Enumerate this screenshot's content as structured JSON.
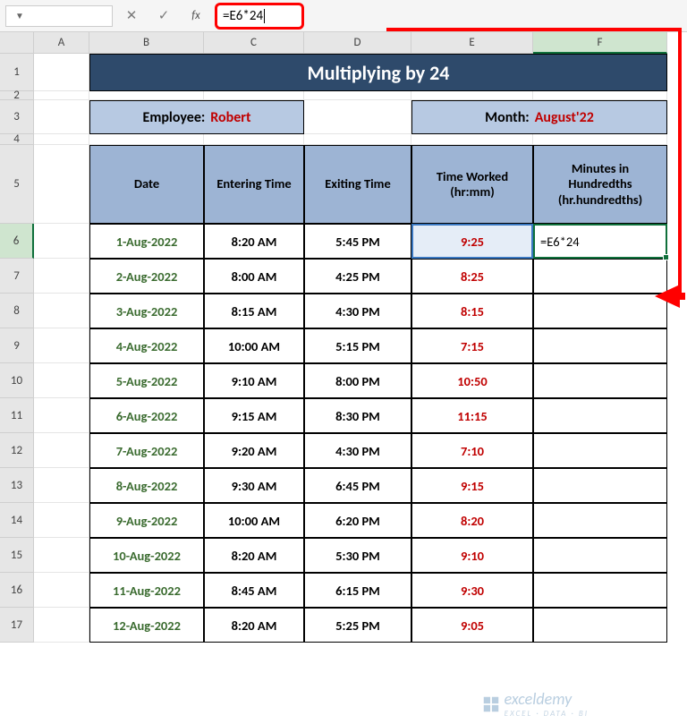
{
  "formula_bar": {
    "name_box": "",
    "cancel_icon": "✕",
    "enter_icon": "✓",
    "fx_label": "fx",
    "formula": "=E6*24"
  },
  "columns": [
    "A",
    "B",
    "C",
    "D",
    "E",
    "F"
  ],
  "rows": [
    "1",
    "2",
    "3",
    "4",
    "5",
    "6",
    "7",
    "8",
    "9",
    "10",
    "11",
    "12",
    "13",
    "14",
    "15",
    "16",
    "17"
  ],
  "title": "Multiplying by 24",
  "info": {
    "employee_label": "Employee:",
    "employee_value": "Robert",
    "month_label": "Month:",
    "month_value": "August'22"
  },
  "headers": {
    "date": "Date",
    "entering": "Entering Time",
    "exiting": "Exiting Time",
    "worked": "Time Worked (hr:mm)",
    "minutes": "Minutes in Hundredths (hr.hundredths)"
  },
  "data": [
    {
      "date": "1-Aug-2022",
      "enter": "8:20 AM",
      "exit": "5:45 PM",
      "worked": "9:25",
      "min": "=E6*24"
    },
    {
      "date": "2-Aug-2022",
      "enter": "8:00 AM",
      "exit": "4:25 PM",
      "worked": "8:25",
      "min": ""
    },
    {
      "date": "3-Aug-2022",
      "enter": "8:15 AM",
      "exit": "4:30 PM",
      "worked": "8:15",
      "min": ""
    },
    {
      "date": "4-Aug-2022",
      "enter": "10:00 AM",
      "exit": "5:15 PM",
      "worked": "7:15",
      "min": ""
    },
    {
      "date": "5-Aug-2022",
      "enter": "9:10 AM",
      "exit": "8:00 PM",
      "worked": "10:50",
      "min": ""
    },
    {
      "date": "6-Aug-2022",
      "enter": "9:15 AM",
      "exit": "8:30 PM",
      "worked": "11:15",
      "min": ""
    },
    {
      "date": "7-Aug-2022",
      "enter": "9:20 AM",
      "exit": "4:30 PM",
      "worked": "7:10",
      "min": ""
    },
    {
      "date": "8-Aug-2022",
      "enter": "9:30 AM",
      "exit": "6:45 PM",
      "worked": "9:15",
      "min": ""
    },
    {
      "date": "9-Aug-2022",
      "enter": "10:00 AM",
      "exit": "6:20 PM",
      "worked": "8:20",
      "min": ""
    },
    {
      "date": "10-Aug-2022",
      "enter": "8:20 AM",
      "exit": "5:30 PM",
      "worked": "9:10",
      "min": ""
    },
    {
      "date": "11-Aug-2022",
      "enter": "8:45 AM",
      "exit": "6:15 PM",
      "worked": "9:30",
      "min": ""
    },
    {
      "date": "12-Aug-2022",
      "enter": "8:20 AM",
      "exit": "5:25 PM",
      "worked": "9:05",
      "min": ""
    }
  ],
  "colors": {
    "title_bg": "#2e4a6b",
    "title_text": "#ffffff",
    "header_bg": "#9db4d4",
    "info_bg": "#b7c9e2",
    "date_text": "#3a6b2f",
    "worked_text": "#c00000",
    "callout": "#ff0000",
    "selection_border": "#0f703b",
    "reference_border": "#3a78c2",
    "reference_fill": "#e5edf7"
  },
  "watermark": {
    "brand": "exceldemy",
    "tagline": "EXCEL · DATA · BI"
  }
}
